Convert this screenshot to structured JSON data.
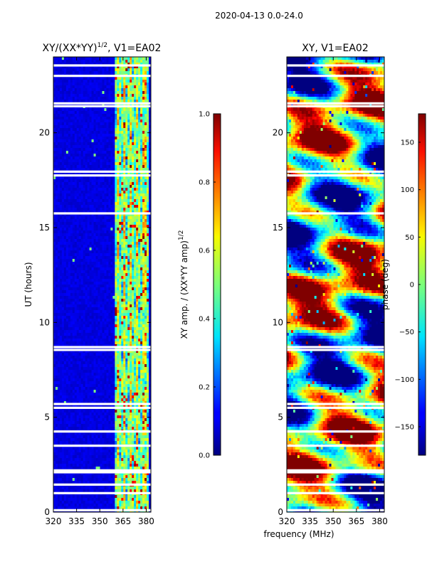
{
  "suptitle": "2020-04-13 0.0-24.0",
  "chart_data": [
    {
      "type": "heatmap",
      "title": "XY/(XX*YY)^{1/2}, V1=EA02",
      "title_main": "XY/(XX*YY)",
      "title_exp": "1/2",
      "title_tail": ", V1=EA02",
      "xlabel": "",
      "ylabel": "UT (hours)",
      "xlim": [
        320,
        383
      ],
      "ylim": [
        0,
        24
      ],
      "xticks": [
        320,
        335,
        350,
        365,
        380
      ],
      "yticks": [
        0,
        5,
        10,
        15,
        20
      ],
      "colormap": "jet",
      "colorbar": {
        "label": "XY amp. / (XX*YY amp)^{1/2}",
        "label_main": "XY amp. / (XX*YY amp)",
        "label_exp": "1/2",
        "range": [
          0.0,
          1.0
        ],
        "ticks": [
          "0.0",
          "0.2",
          "0.4",
          "0.6",
          "0.8",
          "1.0"
        ],
        "tick_values": [
          0,
          0.2,
          0.4,
          0.6,
          0.8,
          1.0
        ]
      },
      "active_band_mhz": [
        360,
        381
      ],
      "flagged_rows_hours": [
        0.1,
        1.0,
        1.45,
        2.1,
        2.2,
        3.5,
        4.25,
        5.5,
        5.7,
        8.55,
        8.7,
        15.75,
        17.75,
        17.95,
        21.4,
        21.55,
        23.0,
        23.55
      ]
    },
    {
      "type": "heatmap",
      "title": "XY, V1=EA02",
      "xlabel": "frequency (MHz)",
      "ylabel": "",
      "xlim": [
        320,
        383
      ],
      "ylim": [
        0,
        24
      ],
      "xticks": [
        320,
        335,
        350,
        365,
        380
      ],
      "yticks": [
        0,
        5,
        10,
        15,
        20
      ],
      "colormap": "jet",
      "colorbar": {
        "label": "phase (deg)",
        "range": [
          -180,
          180
        ],
        "ticks": [
          "−150",
          "−100",
          "−50",
          "0",
          "50",
          "100",
          "150"
        ],
        "tick_values": [
          -150,
          -100,
          -50,
          0,
          50,
          100,
          150
        ]
      },
      "flagged_rows_hours": [
        0.1,
        1.0,
        1.45,
        2.1,
        2.2,
        3.5,
        4.25,
        5.5,
        5.7,
        8.55,
        8.7,
        15.75,
        17.75,
        17.95,
        21.4,
        21.55,
        23.0,
        23.55
      ]
    }
  ]
}
